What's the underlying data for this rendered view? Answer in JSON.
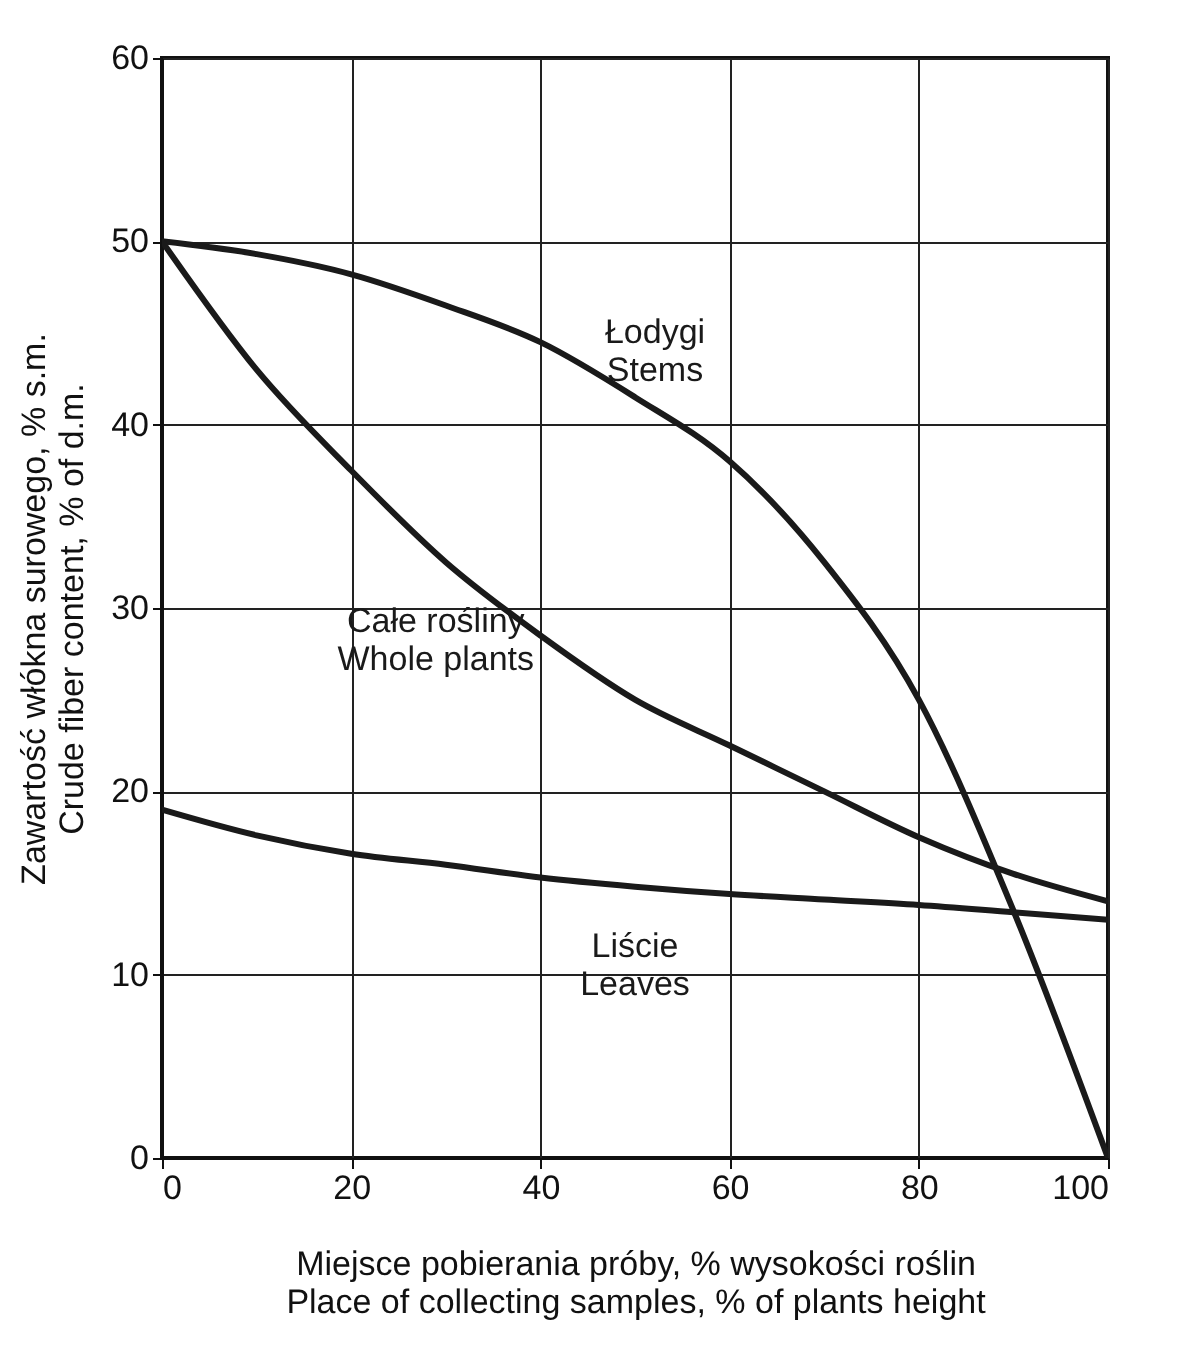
{
  "chart_data": {
    "type": "line",
    "xlabel": "Miejsce pobierania próby, % wysokości roślin\nPlace of collecting samples, % of plants height",
    "ylabel": "Zawartość włókna surowego, % s.m.\nCrude fiber content, % of d.m.",
    "x": [
      0,
      10,
      20,
      30,
      40,
      50,
      60,
      70,
      80,
      90,
      100
    ],
    "series": [
      {
        "name": "Łodygi\nStems",
        "color": "#1a1a1a",
        "values": [
          50,
          49.3,
          48.2,
          46.5,
          44.5,
          41.5,
          38,
          32.5,
          25,
          13.5,
          0
        ]
      },
      {
        "name": "Całe rośliny\nWhole plants",
        "color": "#1a1a1a",
        "values": [
          50,
          43,
          37.5,
          32.5,
          28.5,
          25,
          22.5,
          20,
          17.5,
          15.5,
          14
        ]
      },
      {
        "name": "Liście\nLeaves",
        "color": "#1a1a1a",
        "values": [
          19,
          17.6,
          16.6,
          16,
          15.3,
          14.8,
          14.4,
          14.1,
          13.8,
          13.4,
          13
        ]
      }
    ],
    "xlim": [
      0,
      100
    ],
    "xticks": [
      0,
      20,
      40,
      60,
      80,
      100
    ],
    "ylim": [
      0,
      60
    ],
    "yticks": [
      0,
      10,
      20,
      30,
      40,
      50,
      60
    ],
    "grid": true,
    "legend": false,
    "marker": "none",
    "line_style": "solid"
  }
}
